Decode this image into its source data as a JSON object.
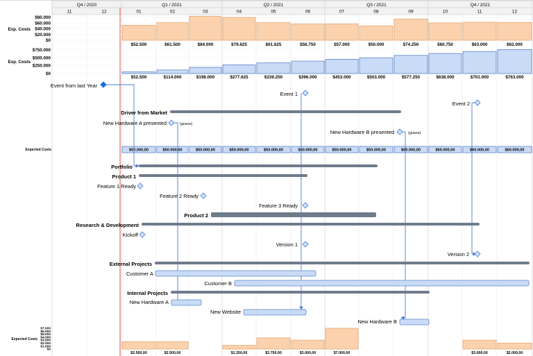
{
  "timeline": {
    "quarters": [
      "Q4 / 2020",
      "Q1 / 2021",
      "Q2 / 2021",
      "Q3 / 2021",
      "Q4 / 2021"
    ],
    "months": [
      "11",
      "12",
      "01",
      "02",
      "03",
      "04",
      "05",
      "06",
      "07",
      "08",
      "09",
      "10",
      "11",
      "12"
    ]
  },
  "colors": {
    "orange_fill": "#fbd2ad",
    "orange_stroke": "#e8a76f",
    "blue_fill": "#c9dbf6",
    "blue_stroke": "#5b86c9",
    "summary_bar": "#6e7b8b",
    "today_line": "#d9534f",
    "milestone_fill": "#cfe0fa",
    "milestone_stroke": "#4a7bd0",
    "arrow": "#4a7bd0",
    "grid": "#e4e4e4",
    "header_bg": "#f2f2f2"
  },
  "charts": {
    "exp_costs": {
      "label": "Exp. Costs",
      "ticks": [
        "$80.000",
        "$60.000",
        "$40.000",
        "$20.000",
        "$0"
      ],
      "ymax": 80000,
      "values": [
        52500,
        61500,
        84000,
        79625,
        61625,
        56750,
        57000,
        50000,
        74250,
        60750,
        63000,
        62000
      ],
      "labels": [
        "$52.500",
        "$61.500",
        "$84.000",
        "$79.625",
        "$61.625",
        "$56.750",
        "$57.000",
        "$50.000",
        "$74.250",
        "$60.750",
        "$63.000",
        "$62.000"
      ]
    },
    "exp_costs_cumulative": {
      "label": "Exp. Costs",
      "ticks": [
        "$750.000",
        "$500.000",
        "$250.000",
        "$0"
      ],
      "ymax": 750000,
      "values": [
        52500,
        114000,
        198000,
        277625,
        339250,
        396000,
        453000,
        503000,
        577250,
        638000,
        701000,
        763000
      ],
      "labels": [
        "$52.500",
        "$114.000",
        "$198.000",
        "$277.625",
        "$339.250",
        "$396.000",
        "$453.000",
        "$503.000",
        "$577.250",
        "$638.000",
        "$701.000",
        "$763.000"
      ]
    },
    "expected_costs_row": {
      "label": "Expected Costs",
      "labels": [
        "$50.000,00",
        "$50.000,00",
        "$50.000,00",
        "$50.000,00",
        "$50.000,00",
        "$50.000,00",
        "$50.000,00",
        "$50.000,00",
        "$60.000,00",
        "$60.000,00",
        "$60.000,00",
        "$60.000,00"
      ]
    },
    "expected_costs_bottom": {
      "label": "Expected Costs",
      "ticks": [
        "$7.000",
        "$6.000",
        "$5.000",
        "$4.000",
        "$3.000",
        "$2.000",
        "$1.000",
        "$0"
      ],
      "ymax": 7000,
      "values": [
        2500,
        2500,
        0,
        1250,
        3750,
        3000,
        7000,
        0,
        0,
        0,
        3000,
        2000
      ],
      "labels": [
        "$2.500,00",
        "$2.500,00",
        "",
        "$1.250,00",
        "$3.750,00",
        "$3.000,00",
        "$7.000,00",
        "",
        "",
        "",
        "$3.000,00",
        "$2.000,00"
      ]
    }
  },
  "gantt": {
    "event_last_year": "Event from last Year",
    "event1": "Event 1",
    "event2": "Event 2",
    "driver_from_market": "Driver from Market",
    "new_hw_a_presented": "New Hardware A presented",
    "guess_a": "(guess)",
    "new_hw_b_presented": "New Hardware B presented",
    "guess_b": "(guess)",
    "portfolio": "Portfolio",
    "product1": "Product 1",
    "feature1": "Feature 1 Ready",
    "feature2": "Feature 2 Ready",
    "feature3": "Feature 3 Ready",
    "product2": "Product 2",
    "research": "Research & Development",
    "kickoff": "Kickoff",
    "version1": "Version 1",
    "version2": "Version 2",
    "external_projects": "External Projects",
    "customer_a": "Customer A",
    "customer_b": "Customer B",
    "internal_projects": "Internal Projects",
    "new_hardware_a": "New Hardware A",
    "new_website": "New Website",
    "new_hardware_b": "New Hardware B"
  }
}
